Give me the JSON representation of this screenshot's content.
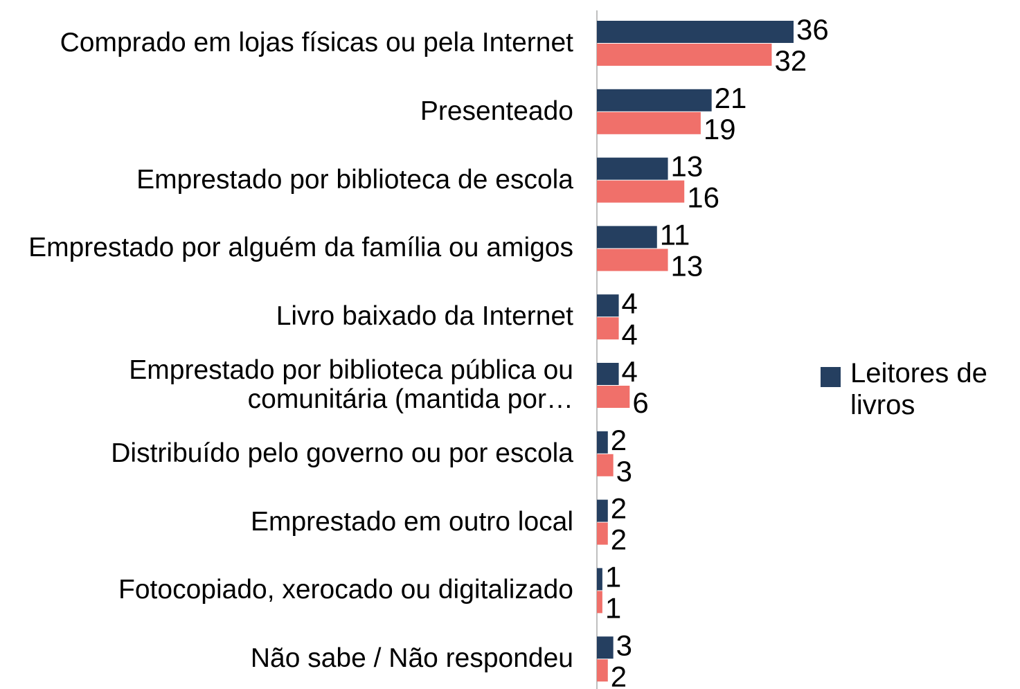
{
  "chart_data": {
    "type": "hbar",
    "categories": [
      "Comprado em lojas físicas ou pela Internet",
      "Presenteado",
      "Emprestado por biblioteca de escola",
      "Emprestado por alguém da família ou amigos",
      "Livro baixado da Internet",
      "Emprestado por biblioteca pública ou comunitária (mantida por…",
      "Distribuído pelo governo ou por escola",
      "Emprestado em outro local",
      "Fotocopiado, xerocado ou digitalizado",
      "Não sabe / Não respondeu"
    ],
    "series": [
      {
        "name": "Leitores de livros",
        "color": "#253f60",
        "values": [
          36,
          21,
          13,
          11,
          4,
          4,
          2,
          2,
          1,
          3
        ]
      },
      {
        "color": "#f0706a",
        "values": [
          32,
          19,
          16,
          13,
          4,
          6,
          3,
          2,
          1,
          2
        ]
      }
    ],
    "legend": "right"
  }
}
